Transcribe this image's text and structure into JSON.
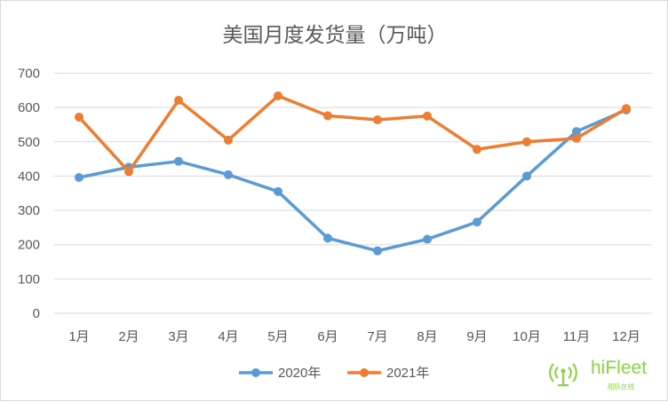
{
  "chart_data": {
    "type": "line",
    "title": "美国月度发货量（万吨）",
    "categories": [
      "1月",
      "2月",
      "3月",
      "4月",
      "5月",
      "6月",
      "7月",
      "8月",
      "9月",
      "10月",
      "11月",
      "12月"
    ],
    "series": [
      {
        "name": "2020年",
        "color": "#5b9bd5",
        "values": [
          396,
          426,
          443,
          404,
          355,
          219,
          182,
          216,
          266,
          400,
          530,
          593
        ]
      },
      {
        "name": "2021年",
        "color": "#ed7d31",
        "values": [
          572,
          413,
          621,
          505,
          634,
          576,
          564,
          575,
          478,
          500,
          510,
          597
        ]
      }
    ],
    "ylim": [
      0,
      700
    ],
    "yticks": [
      0,
      100,
      200,
      300,
      400,
      500,
      600,
      700
    ],
    "grid": true,
    "legend": "bottom"
  },
  "watermark": {
    "text": "hiFleet",
    "subtext": "船队在线",
    "color": "#8fd24a"
  }
}
